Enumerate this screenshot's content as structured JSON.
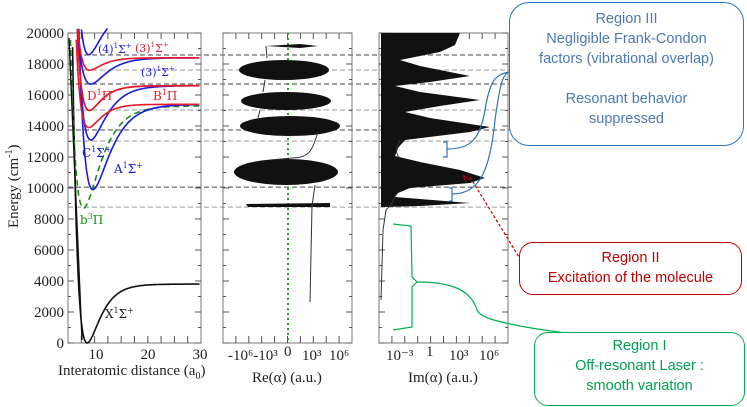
{
  "colors": {
    "region3": "#2e75b6",
    "region2": "#c00000",
    "region1": "#00b050",
    "sigma_blue": "#1a1adc",
    "pi_red": "#e8182a",
    "triplet_green": "#1a8a1a"
  },
  "chart_data": {
    "type": "line",
    "panels": [
      {
        "name": "potential-curves",
        "xlabel": "Interatomic distance (a",
        "xlabel_sub": "0",
        "xlabel_end": ")",
        "ylabel": "Energy (cm",
        "ylabel_sup": "-1",
        "ylabel_end": ")",
        "xlim": [
          5,
          30
        ],
        "ylim": [
          0,
          20000
        ],
        "xticks": [
          "10",
          "20",
          "30"
        ],
        "yticks": [
          "0",
          "2000",
          "4000",
          "6000",
          "8000",
          "10000",
          "12000",
          "14000",
          "16000",
          "18000",
          "20000"
        ],
        "states": [
          {
            "label": "X",
            "sup": "1",
            "sym": "Σ+",
            "Te": 0,
            "re": 8.3,
            "asym": 3800,
            "a": 0.42,
            "color": "#111111",
            "dashed": false
          },
          {
            "label": "b",
            "sup": "3",
            "sym": "Π",
            "Te": 8700,
            "re": 7.6,
            "asym": 15300,
            "a": 0.33,
            "color": "#1a8a1a",
            "dashed": true
          },
          {
            "label": "A",
            "sup": "1",
            "sym": "Σ+",
            "Te": 9900,
            "re": 9.4,
            "asym": 15400,
            "a": 0.32,
            "color": "#1a1adc",
            "dashed": false
          },
          {
            "label": "C",
            "sup": "1",
            "sym": "Σ+",
            "Te": 13100,
            "re": 9.0,
            "asym": 16600,
            "a": 0.36,
            "color": "#1a1adc",
            "dashed": false
          },
          {
            "label": "",
            "sup": "",
            "sym": "",
            "Te": 13900,
            "re": 8.6,
            "asym": 15400,
            "a": 0.45,
            "color": "#e8182a",
            "dashed": false
          },
          {
            "label": "D",
            "sup": "1",
            "sym": "Π",
            "Te": 15000,
            "re": 8.7,
            "asym": 16600,
            "a": 0.45,
            "color": "#e8182a",
            "dashed": false
          },
          {
            "label": "B",
            "sup": "1",
            "sym": "Π",
            "Te": 15000,
            "re": 8.7,
            "asym": 16600,
            "a": 0.45,
            "color": "#e8182a",
            "dashed": false
          },
          {
            "label": "(3)",
            "sup": "1",
            "sym": "Σ+",
            "Te": 16700,
            "re": 9.0,
            "asym": 18400,
            "a": 0.35,
            "color": "#1a1adc",
            "dashed": false
          },
          {
            "label": "(3)",
            "sup": "1",
            "sym": "Σ+",
            "Te": 17600,
            "re": 8.8,
            "asym": 18400,
            "a": 0.45,
            "color": "#e8182a",
            "dashed": false
          },
          {
            "label": "(4)",
            "sup": "1",
            "sym": "Σ+",
            "Te": 18600,
            "re": 8.6,
            "asym": 21500,
            "a": 0.4,
            "color": "#1a1adc",
            "dashed": false
          }
        ]
      },
      {
        "name": "real-polarizability",
        "xlabel": "Re(α) (a.u.)",
        "xticks": [
          "-10^6",
          "-10^3",
          "0",
          "10^3",
          "10^6"
        ],
        "xticks_text": "-10⁶-10³",
        "zero": "0",
        "pos": "10³ 10⁶"
      },
      {
        "name": "imag-polarizability",
        "xlabel": "Im(α) (a.u.)",
        "xticks": [
          "10^-3",
          "1",
          "10^3",
          "10^6"
        ]
      }
    ],
    "threshold_energies": [
      18580,
      17610,
      16710,
      15030,
      13740,
      13030,
      10060,
      8770
    ]
  },
  "labels": {
    "x": "X",
    "b": "b",
    "a": "A",
    "c": "C",
    "d": "D",
    "bpi": "B",
    "s3": "(3)",
    "s3r": "(3)",
    "s4": "(4)",
    "re_xlabel": "Re(α) (a.u.)",
    "im_xlabel": "Im(α) (a.u.)",
    "re_t1": "-10⁶",
    "re_t2": "-10³",
    "re_t3": "0",
    "re_t4": "10³",
    "re_t5": "10⁶",
    "im_t1": "10⁻³",
    "im_t2": "1",
    "im_t3": "10³",
    "im_t4": "10⁶"
  },
  "regions": {
    "r3": {
      "title": "Region III",
      "line1": "Negligible Frank-Condon",
      "line2": "factors (vibrational overlap)",
      "line3": "Resonant behavior",
      "line4": "suppressed"
    },
    "r2": {
      "title": "Region II",
      "line1": "Excitation of the molecule"
    },
    "r1": {
      "title": "Region I",
      "line1": "Off-resonant Laser :",
      "line2": "smooth variation"
    }
  }
}
